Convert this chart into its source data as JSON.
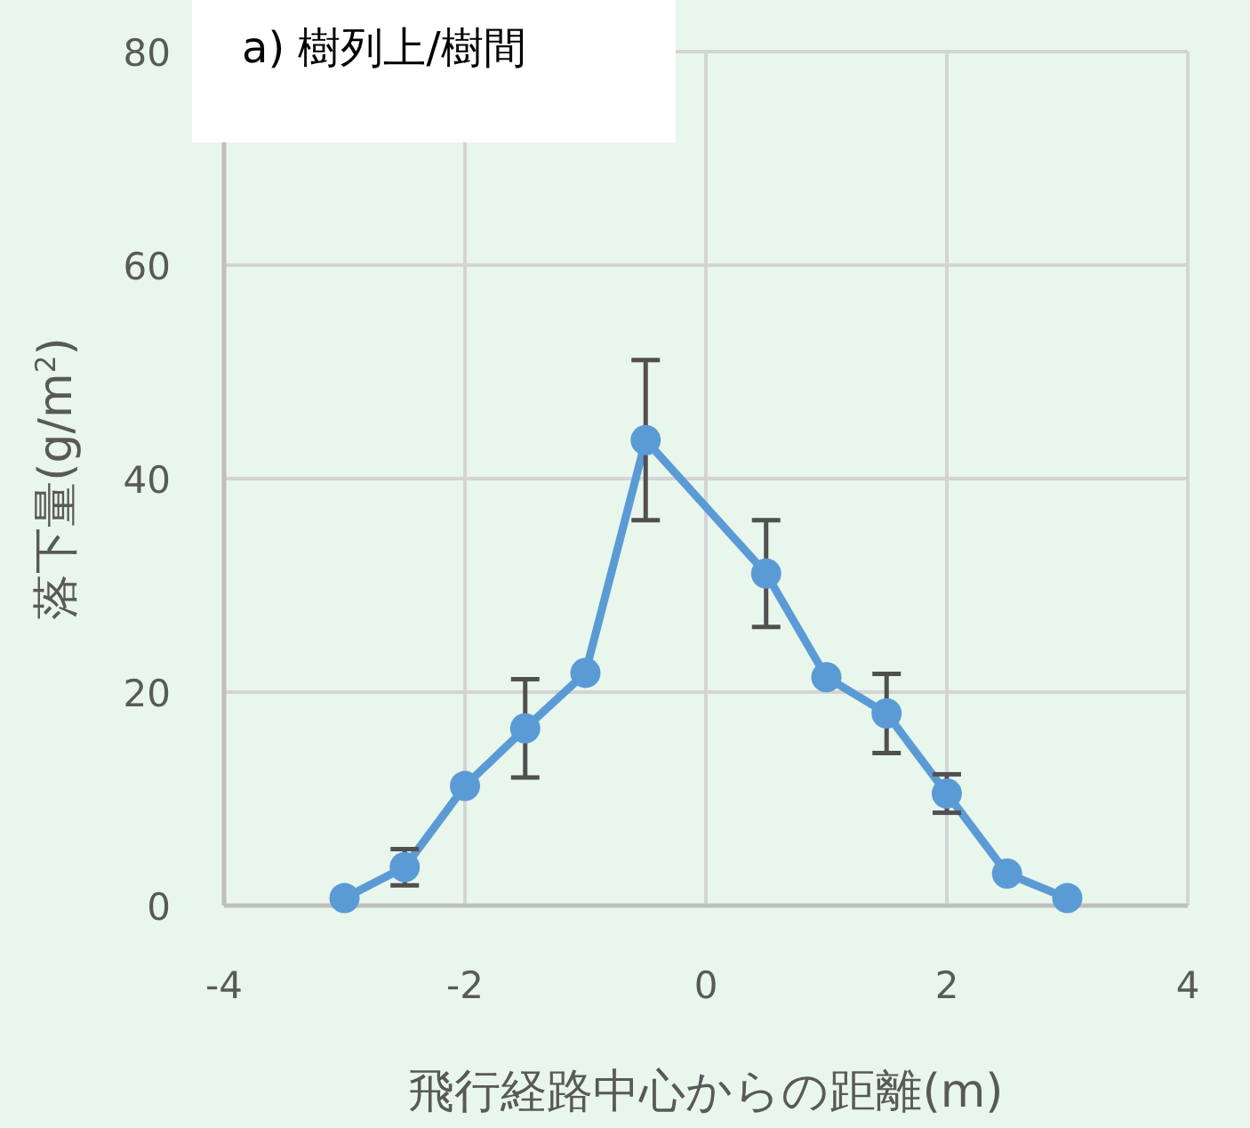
{
  "chart_data": {
    "type": "line",
    "title": "a) 樹列上/樹間",
    "xlabel": "飛行経路中心からの距離(m)",
    "ylabel": "落下量(g/m$^{2}$)",
    "x": [
      -3,
      -2.5,
      -2,
      -1.5,
      -1,
      -0.5,
      0.5,
      1,
      1.5,
      2,
      2.5,
      3
    ],
    "series": [
      {
        "color": "#5b9bd5",
        "values": [
          0.7,
          3.6,
          11.2,
          16.6,
          21.8,
          43.6,
          31.1,
          21.4,
          18.0,
          10.5,
          3.0,
          0.7
        ],
        "errors": [
          null,
          1.7,
          null,
          4.6,
          null,
          7.5,
          5,
          null,
          3.7,
          1.8,
          null,
          null
        ]
      }
    ],
    "xlim": [
      -4,
      4
    ],
    "xticks": [
      -4,
      -2,
      0,
      2,
      4
    ],
    "ylim": [
      0,
      80
    ],
    "yticks": [
      0,
      20,
      40,
      60,
      80
    ],
    "grid": true,
    "marker": "circle",
    "line_style": "solid"
  }
}
